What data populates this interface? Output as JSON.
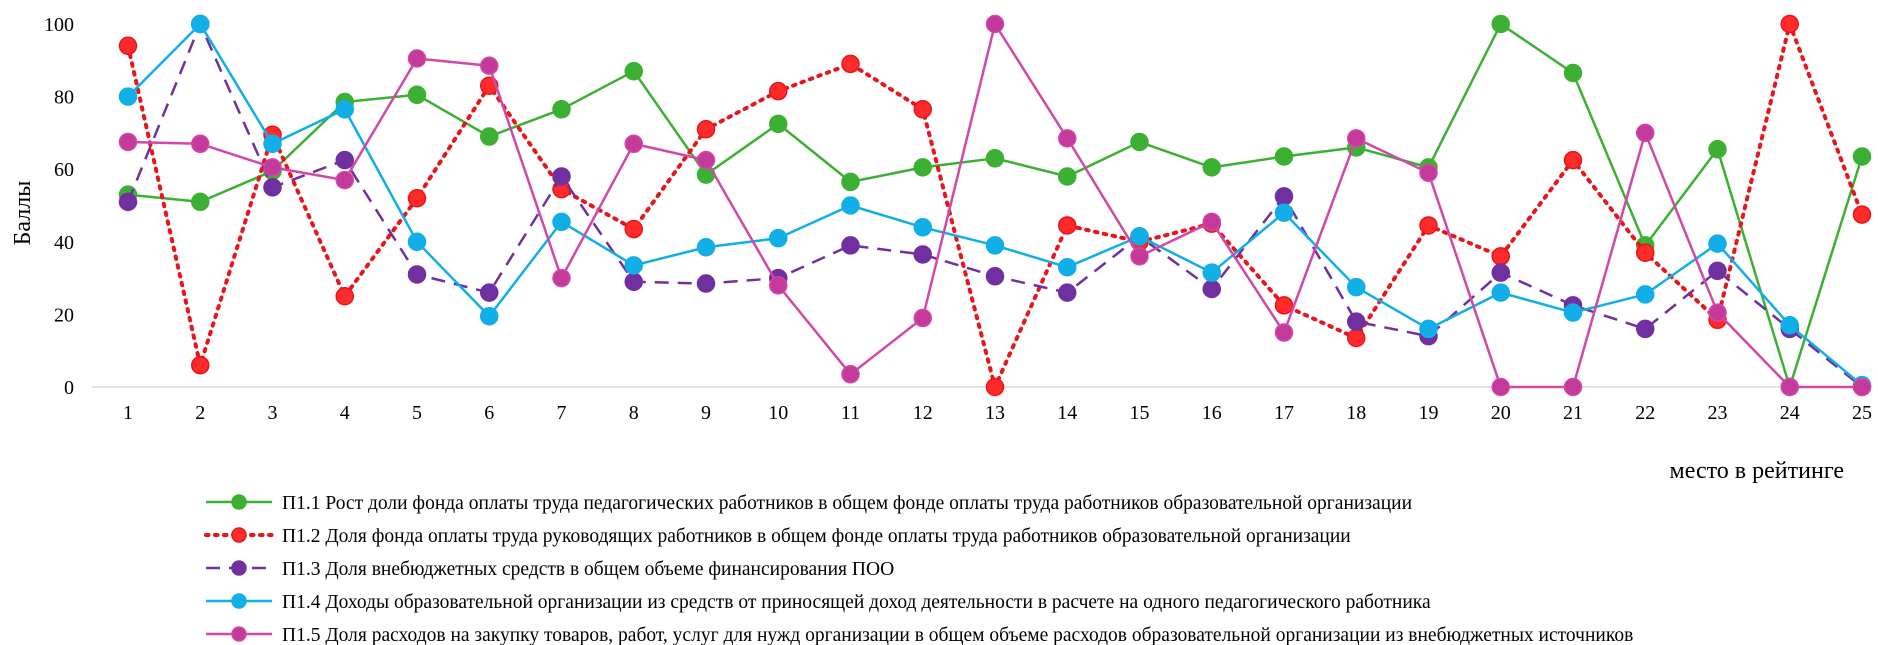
{
  "chart_data": {
    "type": "line",
    "title": "",
    "ylabel": "Баллы",
    "xlabel": "место в рейтинге",
    "ylim": [
      0,
      100
    ],
    "yticks": [
      0,
      20,
      40,
      60,
      80,
      100
    ],
    "grid": false,
    "legend_position": "bottom",
    "x": [
      1,
      2,
      3,
      4,
      5,
      6,
      7,
      8,
      9,
      10,
      11,
      12,
      13,
      14,
      15,
      16,
      17,
      18,
      19,
      20,
      21,
      22,
      23,
      24,
      25
    ],
    "series": [
      {
        "name": "П1.1 Рост доли фонда оплаты труда педагогических работников в общем фонде оплаты труда работников образовательной организации",
        "color": "#3cb032",
        "fill": "#3cb032",
        "dash": "solid",
        "values": [
          53.0,
          51.0,
          59.5,
          78.5,
          80.5,
          69.0,
          76.5,
          87.0,
          58.5,
          72.5,
          56.5,
          60.5,
          63.0,
          58.0,
          67.5,
          60.5,
          63.5,
          66.0,
          60.5,
          100.0,
          86.5,
          39.0,
          65.5,
          0.0,
          63.5
        ]
      },
      {
        "name": "П1.2 Доля фонда оплаты труда руководящих работников в общем фонде оплаты труда работников образовательной организации",
        "color": "#e8151b",
        "fill": "#ff2a2a",
        "dash": "dotted",
        "values": [
          94.0,
          6.0,
          69.5,
          25.0,
          52.0,
          83.0,
          54.5,
          43.5,
          71.0,
          81.5,
          89.0,
          76.5,
          0.0,
          44.5,
          40.0,
          45.0,
          22.5,
          13.5,
          44.5,
          36.0,
          62.5,
          37.0,
          18.5,
          100.0,
          47.5
        ]
      },
      {
        "name": "П1.3 Доля внебюджетных средств в общем объеме финансирования ПОО",
        "color": "#7030a0",
        "fill": "#7030a0",
        "dash": "dashed",
        "values": [
          51.0,
          100.0,
          55.0,
          62.5,
          31.0,
          26.0,
          58.0,
          29.0,
          28.5,
          30.0,
          39.0,
          36.5,
          30.5,
          26.0,
          41.5,
          27.0,
          52.5,
          18.0,
          14.0,
          31.5,
          22.5,
          16.0,
          32.0,
          16.0,
          0.0
        ]
      },
      {
        "name": "П1.4 Доходы образовательной организации из средств от приносящей доход деятельности в расчете на одного педагогического работника",
        "color": "#11aee8",
        "fill": "#11aee8",
        "dash": "solid",
        "values": [
          80.0,
          100.0,
          67.0,
          76.5,
          40.0,
          19.5,
          45.5,
          33.5,
          38.5,
          41.0,
          50.0,
          44.0,
          39.0,
          33.0,
          41.5,
          31.5,
          48.0,
          27.5,
          16.0,
          26.0,
          20.5,
          25.5,
          39.5,
          17.0,
          0.5
        ]
      },
      {
        "name": "П1.5 Доля расходов на закупку товаров, работ, услуг для нужд организации в общем объеме расходов образовательной организации из внебюджетных источников",
        "color": "#d148a8",
        "fill": "#c43a9a",
        "dash": "solid",
        "values": [
          67.5,
          67.0,
          60.5,
          57.0,
          90.5,
          88.5,
          30.0,
          67.0,
          62.5,
          28.0,
          3.5,
          19.0,
          100.0,
          68.5,
          36.0,
          45.5,
          15.0,
          68.5,
          59.0,
          0.0,
          0.0,
          70.0,
          20.5,
          0.0,
          0.0
        ]
      }
    ]
  }
}
